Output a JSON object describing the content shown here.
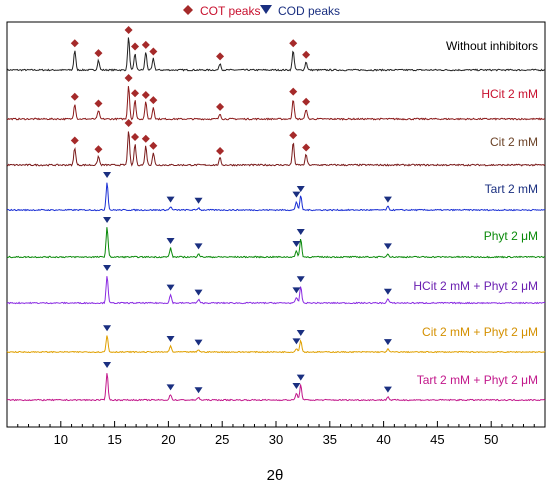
{
  "chart_data": {
    "type": "line",
    "title": "",
    "xlabel": "2θ",
    "ylabel": "",
    "xlim": [
      5,
      55
    ],
    "x_ticks": [
      10,
      15,
      20,
      25,
      30,
      35,
      40,
      45,
      50
    ],
    "legend": {
      "placement": "top-center",
      "entries": [
        {
          "name": "COT peaks",
          "marker": "diamond",
          "color": "#a52a2a",
          "text_color": "#c8102e"
        },
        {
          "name": "COD peaks",
          "marker": "triangle-down",
          "color": "#1a2f80",
          "text_color": "#1a2f80"
        }
      ]
    },
    "cot_peak_positions": [
      11.3,
      13.5,
      16.3,
      16.9,
      17.9,
      18.6,
      24.8,
      31.6,
      32.8
    ],
    "cod_peak_positions": [
      14.3,
      20.2,
      22.8,
      31.9,
      32.3,
      40.4
    ],
    "series": [
      {
        "name": "Without inhibitors",
        "color": "#222222",
        "label_color": "#000000",
        "marker": "COT",
        "peaks": [
          [
            11.3,
            0.6
          ],
          [
            13.5,
            0.3
          ],
          [
            16.3,
            1.0
          ],
          [
            16.9,
            0.5
          ],
          [
            17.9,
            0.55
          ],
          [
            18.6,
            0.35
          ],
          [
            24.8,
            0.2
          ],
          [
            31.6,
            0.6
          ],
          [
            32.8,
            0.25
          ]
        ]
      },
      {
        "name": "HCit 2 mM",
        "color": "#8b1a1a",
        "label_color": "#c8102e",
        "marker": "COT",
        "peaks": [
          [
            11.3,
            0.45
          ],
          [
            13.5,
            0.25
          ],
          [
            16.3,
            1.0
          ],
          [
            16.9,
            0.55
          ],
          [
            17.9,
            0.5
          ],
          [
            18.6,
            0.35
          ],
          [
            24.8,
            0.15
          ],
          [
            31.6,
            0.6
          ],
          [
            32.8,
            0.3
          ]
        ]
      },
      {
        "name": "Cit 2 mM",
        "color": "#7a1a1a",
        "label_color": "#6b4226",
        "marker": "COT",
        "peaks": [
          [
            11.3,
            0.5
          ],
          [
            13.5,
            0.25
          ],
          [
            16.3,
            1.0
          ],
          [
            16.9,
            0.6
          ],
          [
            17.9,
            0.55
          ],
          [
            18.6,
            0.35
          ],
          [
            24.8,
            0.2
          ],
          [
            31.6,
            0.65
          ],
          [
            32.8,
            0.3
          ]
        ]
      },
      {
        "name": "Tart 2 mM",
        "color": "#1a2fd4",
        "label_color": "#1a2f80",
        "marker": "COD",
        "peaks": [
          [
            14.3,
            1.0
          ],
          [
            20.2,
            0.12
          ],
          [
            22.8,
            0.08
          ],
          [
            31.9,
            0.3
          ],
          [
            32.3,
            0.5
          ],
          [
            40.4,
            0.12
          ]
        ]
      },
      {
        "name": "Phyt 2 μM",
        "color": "#0a8a0a",
        "label_color": "#0a8a0a",
        "marker": "COD",
        "peaks": [
          [
            14.3,
            1.0
          ],
          [
            20.2,
            0.3
          ],
          [
            22.8,
            0.12
          ],
          [
            31.9,
            0.2
          ],
          [
            32.3,
            0.6
          ],
          [
            40.4,
            0.12
          ]
        ]
      },
      {
        "name": "HCit 2 mM + Phyt 2 μM",
        "color": "#8a2be2",
        "label_color": "#6a1fb0",
        "marker": "COD",
        "peaks": [
          [
            14.3,
            1.0
          ],
          [
            20.2,
            0.3
          ],
          [
            22.8,
            0.12
          ],
          [
            31.9,
            0.2
          ],
          [
            32.3,
            0.6
          ],
          [
            40.4,
            0.15
          ]
        ]
      },
      {
        "name": "Cit 2 mM + Phyt 2 μM",
        "color": "#e0a000",
        "label_color": "#d49000",
        "marker": "COD",
        "peaks": [
          [
            14.3,
            0.7
          ],
          [
            20.2,
            0.25
          ],
          [
            22.8,
            0.1
          ],
          [
            31.9,
            0.15
          ],
          [
            32.3,
            0.5
          ],
          [
            40.4,
            0.12
          ]
        ]
      },
      {
        "name": "Tart 2 mM + Phyt 2 μM",
        "color": "#c2188b",
        "label_color": "#c2188b",
        "marker": "COD",
        "peaks": [
          [
            14.3,
            1.0
          ],
          [
            20.2,
            0.2
          ],
          [
            22.8,
            0.1
          ],
          [
            31.9,
            0.25
          ],
          [
            32.3,
            0.55
          ],
          [
            40.4,
            0.12
          ]
        ]
      }
    ]
  }
}
